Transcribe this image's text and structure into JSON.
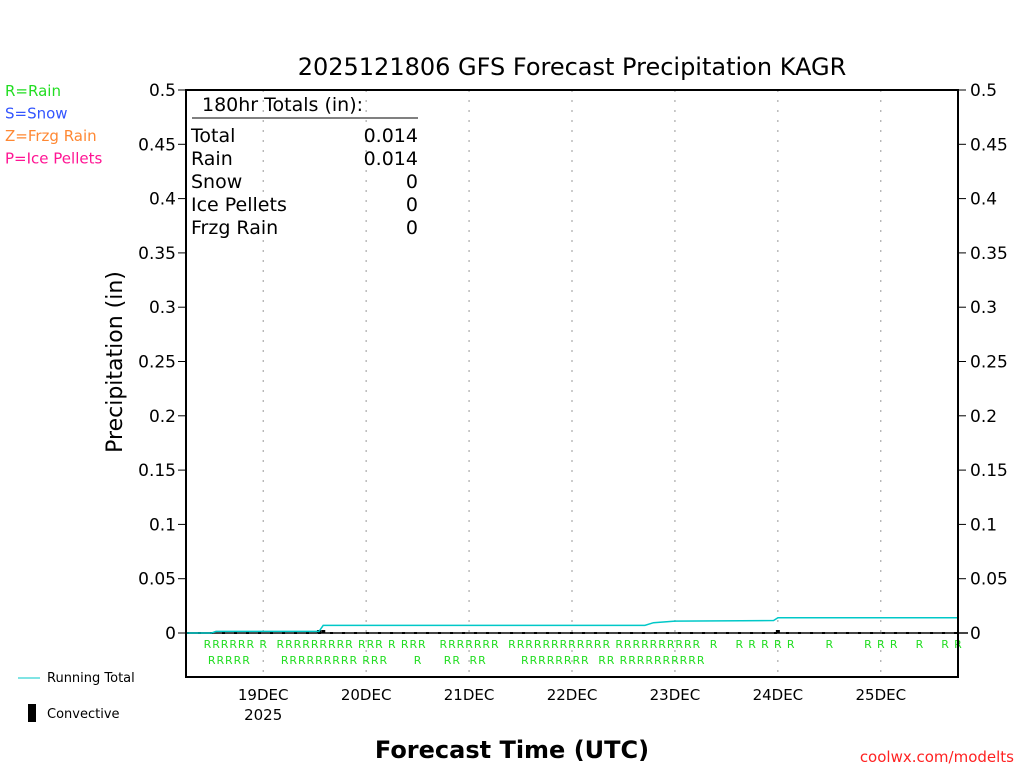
{
  "chart_data": {
    "type": "line",
    "title": "2025121806 GFS Forecast Precipitation KAGR",
    "xlabel": "Forecast Time (UTC)",
    "ylabel": "Precipitation (in)",
    "xlim_hours": [
      0,
      180
    ],
    "ylim": [
      0,
      0.5
    ],
    "grid": "vertical dotted at day boundaries",
    "y_ticks": [
      "0",
      "0.05",
      "0.1",
      "0.15",
      "0.2",
      "0.25",
      "0.3",
      "0.35",
      "0.4",
      "0.45",
      "0.5"
    ],
    "x_ticks": [
      {
        "hour": 18,
        "label": "19DEC",
        "sub": "2025"
      },
      {
        "hour": 42,
        "label": "20DEC"
      },
      {
        "hour": 66,
        "label": "21DEC"
      },
      {
        "hour": 90,
        "label": "22DEC"
      },
      {
        "hour": 114,
        "label": "23DEC"
      },
      {
        "hour": 138,
        "label": "24DEC"
      },
      {
        "hour": 162,
        "label": "25DEC"
      }
    ],
    "type_legend": [
      {
        "label": "R=Rain",
        "color": "#22dd22"
      },
      {
        "label": "S=Snow",
        "color": "#3355ff"
      },
      {
        "label": "Z=Frzg Rain",
        "color": "#ff8833"
      },
      {
        "label": "P=Ice Pellets",
        "color": "#ff1493"
      }
    ],
    "totals": {
      "heading": "180hr Totals (in):",
      "rows": [
        {
          "label": "Total",
          "value": "0.014"
        },
        {
          "label": "Rain",
          "value": "0.014"
        },
        {
          "label": "Snow",
          "value": "0"
        },
        {
          "label": "Ice Pellets",
          "value": "0"
        },
        {
          "label": "Frzg Rain",
          "value": "0"
        }
      ]
    },
    "series": [
      {
        "name": "Running Total",
        "color": "#00c8c8",
        "points": [
          [
            0,
            0
          ],
          [
            6,
            0
          ],
          [
            7,
            0.0015
          ],
          [
            31,
            0.0015
          ],
          [
            32,
            0.007
          ],
          [
            107,
            0.007
          ],
          [
            109,
            0.0095
          ],
          [
            114,
            0.011
          ],
          [
            137,
            0.0115
          ],
          [
            138,
            0.014
          ],
          [
            180,
            0.014
          ]
        ]
      },
      {
        "name": "Convective",
        "color": "#000000",
        "bars": [
          [
            31,
            0.001
          ],
          [
            32,
            0.001
          ],
          [
            138,
            0.0006
          ]
        ]
      }
    ],
    "precip_type_marker": "R",
    "precip_type_hours": [
      5,
      6,
      7,
      8,
      9,
      10,
      11,
      12,
      13,
      14,
      15,
      18,
      22,
      23,
      24,
      25,
      26,
      27,
      28,
      29,
      30,
      31,
      32,
      33,
      34,
      35,
      36,
      37,
      38,
      39,
      41,
      42,
      43,
      44,
      45,
      46,
      48,
      51,
      53,
      54,
      55,
      60,
      61,
      62,
      63,
      64,
      66,
      67,
      68,
      69,
      70,
      72,
      76,
      78,
      79,
      80,
      81,
      82,
      83,
      84,
      85,
      86,
      87,
      88,
      89,
      90,
      91,
      92,
      93,
      94,
      96,
      97,
      98,
      99,
      101,
      102,
      103,
      104,
      105,
      106,
      107,
      108,
      109,
      110,
      111,
      112,
      113,
      114,
      115,
      116,
      117,
      118,
      119,
      120,
      123,
      129,
      132,
      135,
      138,
      141,
      150,
      159,
      162,
      165,
      171,
      177,
      180
    ],
    "credit": "coolwx.com/modelts"
  }
}
